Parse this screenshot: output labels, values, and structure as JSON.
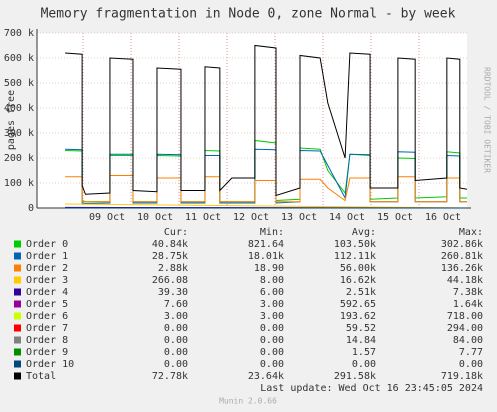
{
  "chart_data": {
    "type": "line",
    "title": "Memory fragmentation in Node 0, zone Normal - by week",
    "y_label": "pages free",
    "side_text": "RRDTOOL / TOBI OETIKER",
    "last_update": "Last update: Wed Oct 16 23:45:05 2024",
    "footer": "Munin 2.0.66",
    "legend_headers": [
      "Cur:",
      "Min:",
      "Avg:",
      "Max:"
    ],
    "grid": true,
    "xlim": [
      -1.46,
      7.5
    ],
    "xticks": [
      {
        "value": 0,
        "label": "09 Oct"
      },
      {
        "value": 1,
        "label": "10 Oct"
      },
      {
        "value": 2,
        "label": "11 Oct"
      },
      {
        "value": 3,
        "label": "12 Oct"
      },
      {
        "value": 4,
        "label": "13 Oct"
      },
      {
        "value": 5,
        "label": "14 Oct"
      },
      {
        "value": 6,
        "label": "15 Oct"
      },
      {
        "value": 7,
        "label": "16 Oct"
      }
    ],
    "ylim": [
      0,
      700000
    ],
    "yticks": [
      0,
      {
        "value": 100000,
        "label": "100 k"
      },
      {
        "value": 200000,
        "label": "200 k"
      },
      {
        "value": 300000,
        "label": "300 k"
      },
      {
        "value": 400000,
        "label": "400 k"
      },
      {
        "value": 500000,
        "label": "500 k"
      },
      {
        "value": 600000,
        "label": "600 k"
      },
      {
        "value": 700000,
        "label": "700 k"
      }
    ],
    "x": [
      -0.875,
      -0.52,
      -0.52,
      -0.45,
      0.06,
      0.06,
      0.54,
      0.54,
      1.04,
      1.04,
      1.54,
      1.54,
      2.04,
      2.04,
      2.35,
      2.35,
      2.6,
      3.08,
      3.08,
      3.52,
      3.52,
      4.02,
      4.02,
      4.44,
      4.6,
      4.96,
      5.06,
      5.48,
      5.48,
      6.06,
      6.06,
      6.42,
      6.42,
      7.08,
      7.08,
      7.35,
      7.35,
      7.5
    ],
    "series": [
      {
        "name": "Order 0",
        "color": "#00cc00",
        "stats": [
          "40.84k",
          "821.64",
          "103.50k",
          "302.86k"
        ],
        "values": [
          230000,
          228000,
          30000,
          25000,
          25000,
          210000,
          210000,
          25000,
          25000,
          210000,
          208000,
          25000,
          25000,
          230000,
          228000,
          25000,
          25000,
          25000,
          270000,
          260000,
          30000,
          35000,
          240000,
          235000,
          150000,
          60000,
          215000,
          210000,
          35000,
          40000,
          200000,
          198000,
          40000,
          45000,
          225000,
          220000,
          40000,
          40000
        ]
      },
      {
        "name": "Order 1",
        "color": "#0066b3",
        "stats": [
          "28.75k",
          "18.01k",
          "112.11k",
          "260.81k"
        ],
        "values": [
          235000,
          233000,
          20000,
          18000,
          20000,
          215000,
          215000,
          20000,
          20000,
          215000,
          213000,
          20000,
          20000,
          210000,
          210000,
          20000,
          20000,
          20000,
          235000,
          233000,
          20000,
          25000,
          230000,
          228000,
          170000,
          40000,
          215000,
          213000,
          25000,
          25000,
          225000,
          223000,
          25000,
          25000,
          210000,
          208000,
          25000,
          25000
        ]
      },
      {
        "name": "Order 2",
        "color": "#ff8000",
        "stats": [
          "2.88k",
          "18.90",
          "56.00k",
          "136.26k"
        ],
        "values": [
          125000,
          125000,
          25000,
          25000,
          25000,
          130000,
          130000,
          25000,
          25000,
          120000,
          120000,
          25000,
          25000,
          125000,
          125000,
          25000,
          25000,
          25000,
          110000,
          110000,
          25000,
          25000,
          115000,
          115000,
          80000,
          30000,
          120000,
          120000,
          25000,
          25000,
          125000,
          125000,
          25000,
          25000,
          120000,
          120000,
          25000,
          25000
        ]
      },
      {
        "name": "Order 3",
        "color": "#ffcc00",
        "stats": [
          "266.08",
          "8.00",
          "16.62k",
          "44.18k"
        ],
        "x": [
          -0.875,
          7.5
        ],
        "values": [
          16000,
          300
        ]
      },
      {
        "name": "Order 4",
        "color": "#330099",
        "stats": [
          "39.30",
          "6.00",
          "2.51k",
          "7.38k"
        ],
        "x": [
          -0.875,
          7.5
        ],
        "values": [
          2500,
          40
        ]
      },
      {
        "name": "Order 5",
        "color": "#990099",
        "stats": [
          "7.60",
          "3.00",
          "592.65",
          "1.64k"
        ],
        "x": [
          -0.875,
          7.5
        ],
        "values": [
          600,
          8
        ]
      },
      {
        "name": "Order 6",
        "color": "#ccff00",
        "stats": [
          "3.00",
          "3.00",
          "193.62",
          "718.00"
        ],
        "x": [
          -0.875,
          7.5
        ],
        "values": [
          190,
          3
        ]
      },
      {
        "name": "Order 7",
        "color": "#ff0000",
        "stats": [
          "0.00",
          "0.00",
          "59.52",
          "294.00"
        ],
        "x": [
          -0.875,
          7.5
        ],
        "values": [
          60,
          0
        ]
      },
      {
        "name": "Order 8",
        "color": "#808080",
        "stats": [
          "0.00",
          "0.00",
          "14.84",
          "84.00"
        ],
        "x": [
          -0.875,
          7.5
        ],
        "values": [
          15,
          0
        ]
      },
      {
        "name": "Order 9",
        "color": "#008f00",
        "stats": [
          "0.00",
          "0.00",
          "1.57",
          "7.77"
        ],
        "x": [
          -0.875,
          7.5
        ],
        "values": [
          2,
          0
        ]
      },
      {
        "name": "Order 10",
        "color": "#00487d",
        "stats": [
          "0.00",
          "0.00",
          "0.00",
          "0.00"
        ],
        "x": [
          -0.875,
          7.5
        ],
        "values": [
          0,
          0
        ]
      },
      {
        "name": "Total",
        "color": "#000000",
        "stats": [
          "72.78k",
          "23.64k",
          "291.58k",
          "719.18k"
        ],
        "values": [
          620000,
          615000,
          90000,
          55000,
          60000,
          600000,
          595000,
          70000,
          65000,
          560000,
          555000,
          70000,
          70000,
          565000,
          560000,
          70000,
          120000,
          120000,
          650000,
          640000,
          50000,
          80000,
          610000,
          600000,
          420000,
          200000,
          620000,
          615000,
          80000,
          80000,
          600000,
          595000,
          110000,
          120000,
          600000,
          595000,
          80000,
          75000
        ]
      }
    ]
  }
}
